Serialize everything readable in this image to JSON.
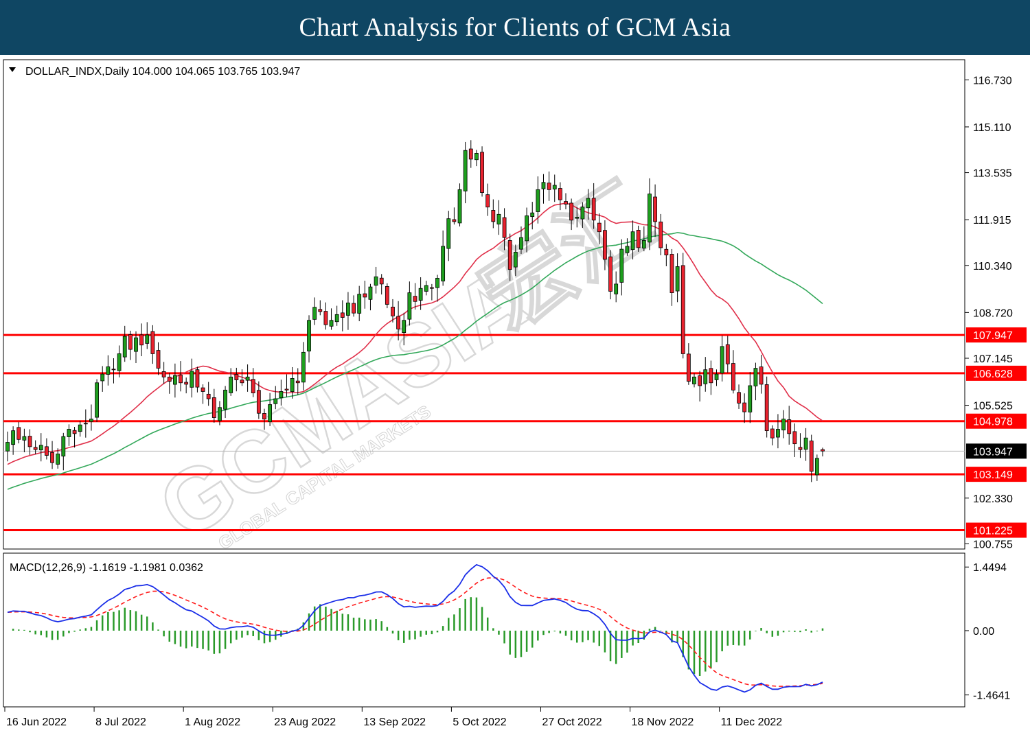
{
  "banner": {
    "title": "Chart Analysis for Clients of GCM Asia"
  },
  "watermark": {
    "brand": "GCMASIA",
    "chinese": "宏汇",
    "subtitle": "GLOBAL CAPITAL MARKETS"
  },
  "colors": {
    "banner": "#0f4663",
    "bull": "#1e9e1e",
    "bear": "#e8222e",
    "wick": "#000000",
    "ma_fast": "#e0304a",
    "ma_slow": "#33a85a",
    "level": "#ff0000",
    "macd_line": "#1a2ee8",
    "signal_line": "#ff1a1a",
    "histogram": "#2a9a2a",
    "current_tag": "#000000"
  },
  "chart_data": [
    {
      "type": "candlestick",
      "symbol_header": "DOLLAR_INDX,Daily  104.000 104.065 103.765 103.947",
      "symbol": "DOLLAR_INDX",
      "timeframe": "Daily",
      "ohlc_last": {
        "open": 104.0,
        "high": 104.065,
        "low": 103.765,
        "close": 103.947
      },
      "y_ticks": [
        "116.730",
        "115.110",
        "113.535",
        "111.915",
        "110.340",
        "108.720",
        "107.145",
        "105.525",
        "102.330",
        "100.755"
      ],
      "ylim": [
        100.6,
        117.4
      ],
      "x_ticks": [
        {
          "label": "16 Jun 2022",
          "index": 0
        },
        {
          "label": "8 Jul 2022",
          "index": 16
        },
        {
          "label": "1 Aug 2022",
          "index": 32
        },
        {
          "label": "23 Aug 2022",
          "index": 48
        },
        {
          "label": "13 Sep 2022",
          "index": 64
        },
        {
          "label": "5 Oct 2022",
          "index": 80
        },
        {
          "label": "27 Oct 2022",
          "index": 96
        },
        {
          "label": "18 Nov 2022",
          "index": 112
        },
        {
          "label": "11 Dec 2022",
          "index": 128
        }
      ],
      "horizontal_levels": [
        "107.947",
        "106.628",
        "104.978",
        "103.149",
        "101.225"
      ],
      "current_price": "103.947",
      "close_series": [
        104.25,
        104.65,
        104.35,
        104.45,
        104.1,
        104.0,
        104.15,
        103.8,
        103.55,
        103.85,
        104.45,
        104.7,
        104.55,
        104.85,
        104.9,
        105.05,
        106.3,
        106.6,
        106.85,
        106.75,
        107.3,
        107.9,
        107.45,
        107.85,
        107.6,
        107.95,
        107.3,
        106.8,
        106.5,
        106.35,
        106.55,
        106.3,
        106.25,
        106.7,
        106.15,
        106.0,
        105.75,
        105.1,
        105.45,
        106.05,
        106.5,
        106.4,
        106.3,
        106.5,
        105.95,
        105.25,
        105.05,
        105.55,
        105.75,
        106.0,
        106.05,
        106.45,
        106.3,
        107.35,
        108.45,
        108.9,
        108.75,
        108.3,
        108.45,
        108.65,
        108.55,
        109.05,
        108.7,
        109.35,
        109.25,
        109.6,
        109.95,
        109.7,
        109.0,
        108.6,
        108.15,
        108.45,
        109.4,
        109.1,
        109.55,
        109.65,
        109.55,
        109.9,
        111.0,
        111.95,
        111.85,
        112.95,
        114.3,
        114.0,
        114.2,
        112.85,
        112.35,
        111.85,
        112.1,
        111.3,
        110.2,
        110.8,
        111.3,
        112.05,
        112.15,
        112.95,
        113.2,
        112.95,
        113.1,
        112.6,
        112.45,
        111.9,
        112.0,
        112.35,
        112.65,
        111.9,
        111.5,
        110.55,
        109.45,
        109.7,
        110.9,
        111.0,
        111.5,
        110.95,
        111.2,
        112.8,
        111.85,
        110.95,
        110.7,
        109.4,
        110.3,
        107.3,
        106.35,
        106.5,
        106.2,
        106.75,
        106.3,
        106.6,
        107.55,
        106.95,
        106.05,
        105.6,
        105.3,
        106.2,
        106.8,
        106.25,
        104.65,
        104.4,
        104.7,
        105.05,
        104.55,
        104.2,
        104.0,
        104.4,
        103.25,
        103.7,
        103.95
      ],
      "sma20_end": 104.98,
      "sma50_end": 109.05
    },
    {
      "type": "macd",
      "header": "MACD(12,26,9) -1.1619 -1.1981 0.0362",
      "params": [
        12,
        26,
        9
      ],
      "macd": -1.1619,
      "signal": -1.1981,
      "histogram": 0.0362,
      "y_ticks": [
        "1.4494",
        "0.00",
        "-1.4641"
      ],
      "ylim": [
        -1.72,
        1.75
      ]
    }
  ]
}
